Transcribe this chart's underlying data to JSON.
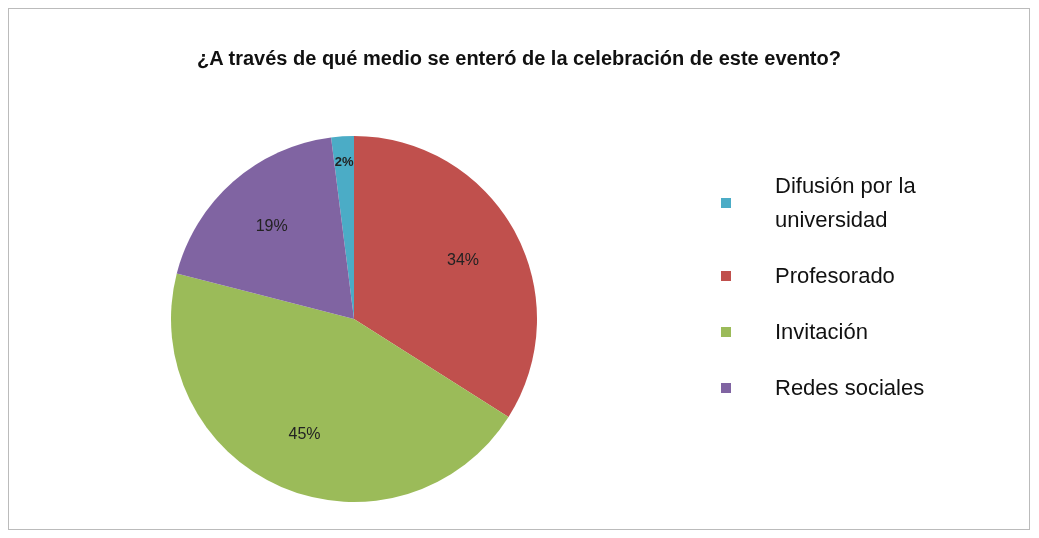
{
  "chart_data": {
    "type": "pie",
    "title": "¿A través de qué medio se enteró de la celebración de este evento?",
    "categories": [
      "Difusión por la universidad",
      "Profesorado",
      "Invitación",
      "Redes sociales"
    ],
    "values": [
      2,
      34,
      45,
      19
    ],
    "colors": [
      "#4bacc6",
      "#c0504d",
      "#9bbb59",
      "#8064a2"
    ],
    "value_labels": [
      "2%",
      "34%",
      "45%",
      "19%"
    ],
    "legend": "right"
  }
}
